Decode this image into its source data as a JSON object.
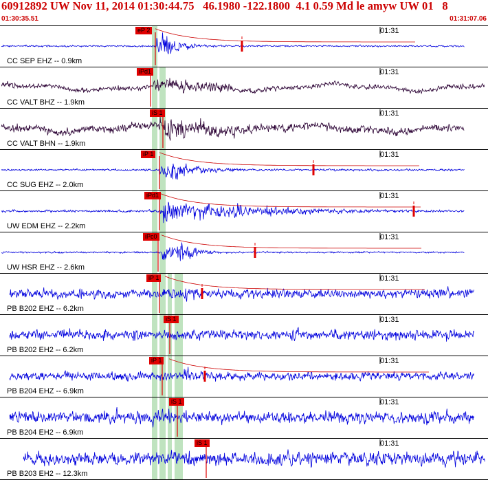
{
  "header": {
    "title": "60912892 UW Nov 11, 2014 01:30:44.75   46.1980 -122.1800  4.1 0.59 Md le amyw UW 01   8",
    "start_time": "01:30:35.51",
    "end_time": "01:31:07.06"
  },
  "colors": {
    "header_text": "#cc0000",
    "trace_blue": "#0000dd",
    "trace_dark": "#2a0033",
    "pick_box": "#e00000",
    "window_band": "#bfe3bf",
    "decay_curve": "#cc0000"
  },
  "chart_data": {
    "type": "line",
    "title": "60912892 UW Nov 11, 2014 01:30:44.75   46.1980 -122.1800  4.1 0.59 Md le amyw UW 01   8",
    "x_range": [
      "01:30:35.51",
      "01:31:07.06"
    ],
    "minute_tick_label": "01:31",
    "series": [
      {
        "name": "CC SEP EHZ -- 0.9km",
        "color": "#0000dd",
        "noise": 0.06,
        "event_amp": 1.0,
        "pick": "eP 2",
        "p_x": 224,
        "s_x": 236,
        "rate": 0.03,
        "coda_pick": true,
        "decay": true,
        "end_x": 676
      },
      {
        "name": "CC VALT BHZ -- 1.9km",
        "color": "#2a0033",
        "noise": 0.18,
        "event_amp": 0.7,
        "pick": "iPd1",
        "p_x": 222,
        "s_x": 240,
        "rate": 0.008,
        "coda_pick": false,
        "decay": false,
        "end_x": 705
      },
      {
        "name": "CC VALT BHN -- 1.9km",
        "color": "#2a0033",
        "noise": 0.28,
        "event_amp": 0.9,
        "pick": "iS 1",
        "p_x": 228,
        "s_x": 244,
        "rate": 0.007,
        "coda_pick": false,
        "decay": false,
        "end_x": 676
      },
      {
        "name": "CC SUG EHZ -- 2.0km",
        "color": "#0000dd",
        "noise": 0.07,
        "event_amp": 0.8,
        "pick": "iP 1",
        "p_x": 230,
        "s_x": 250,
        "rate": 0.018,
        "coda_pick": true,
        "decay": true,
        "end_x": 676
      },
      {
        "name": "UW EDM EHZ -- 2.2km",
        "color": "#0000dd",
        "noise": 0.08,
        "event_amp": 0.9,
        "pick": "iPd1",
        "p_x": 232,
        "s_x": 255,
        "rate": 0.006,
        "coda_pick": true,
        "decay": true,
        "end_x": 676
      },
      {
        "name": "UW HSR EHZ -- 2.6km",
        "color": "#0000dd",
        "noise": 0.06,
        "event_amp": 0.9,
        "pick": "iPc0",
        "p_x": 233,
        "s_x": 258,
        "rate": 0.04,
        "coda_pick": true,
        "decay": true,
        "end_x": 676
      },
      {
        "name": "PB B202 EHZ -- 6.2km",
        "color": "#0000dd",
        "noise": 0.35,
        "event_amp": 0.6,
        "pick": "iP 1",
        "p_x": 238,
        "s_x": 262,
        "rate": 0.04,
        "coda_pick": true,
        "decay": true,
        "end_x": 690
      },
      {
        "name": "PB B202 EH2 -- 6.2km",
        "color": "#0000dd",
        "noise": 0.38,
        "event_amp": 0.5,
        "pick": "iS 1",
        "p_x": 238,
        "s_x": 262,
        "rate": 0.02,
        "coda_pick": false,
        "decay": false,
        "end_x": 690
      },
      {
        "name": "PB B204 EHZ -- 6.9km",
        "color": "#0000dd",
        "noise": 0.3,
        "event_amp": 0.6,
        "pick": "iP 1",
        "p_x": 244,
        "s_x": 268,
        "rate": 0.05,
        "coda_pick": true,
        "decay": true,
        "end_x": 690
      },
      {
        "name": "PB B204 EH2 -- 6.9km",
        "color": "#0000dd",
        "noise": 0.45,
        "event_amp": 0.55,
        "pick": "iS 1",
        "p_x": 244,
        "s_x": 270,
        "rate": 0.02,
        "coda_pick": false,
        "decay": false,
        "end_x": 690
      },
      {
        "name": "PB B203 EH2 -- 12.3km",
        "color": "#0000dd",
        "noise": 0.5,
        "event_amp": 0.55,
        "pick": "iS 1",
        "p_x": 250,
        "s_x": 304,
        "rate": 0.02,
        "coda_pick": false,
        "decay": false,
        "end_x": 706
      }
    ]
  }
}
